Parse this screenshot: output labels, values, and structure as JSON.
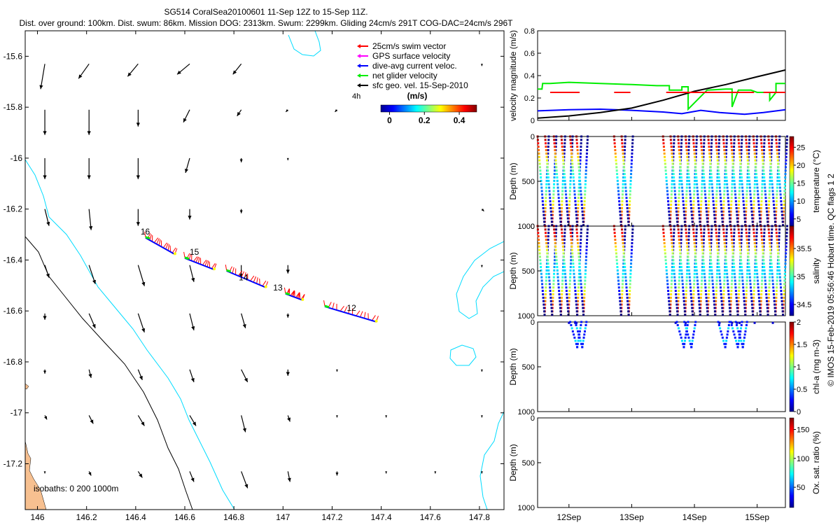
{
  "header": {
    "line1": "SG514 CoralSea20100601 11-Sep 12Z to 15-Sep 11Z.",
    "line2": "Dist. over ground: 100km. Dist. swum: 86km. Mission DOG: 2313km. Swum: 2299km. Gliding 24cm/s 291T COG-DAC=24cm/s 296T"
  },
  "footer_vertical": "© IMOS 15-Feb-2019 05:56:46 Hobart time. QC flags 1  2",
  "colors": {
    "swim": "#ff0000",
    "gps": "#ff00ff",
    "dac": "#0000ff",
    "net": "#00ee00",
    "geo": "#000000",
    "coast": "#00dcff",
    "land": "#f7c090",
    "isobath": "#000000"
  },
  "chart_data": [
    {
      "type": "scatter",
      "name": "map",
      "xlim": [
        145.95,
        147.9
      ],
      "ylim": [
        -17.38,
        -15.5
      ],
      "xticks": [
        "146",
        "146.2",
        "146.4",
        "146.6",
        "146.8",
        "147",
        "147.2",
        "147.4",
        "147.6",
        "147.8"
      ],
      "yticks": [
        "-15.6",
        "-15.8",
        "-16",
        "-16.2",
        "-16.4",
        "-16.6",
        "-16.8",
        "-17",
        "-17.2"
      ],
      "legend": [
        {
          "label": "25cm/s swim vector",
          "color": "#ff0000"
        },
        {
          "label": "GPS surface velocity",
          "color": "#ff00ff"
        },
        {
          "label": "dive-avg current veloc.",
          "color": "#0000ff"
        },
        {
          "label": "net glider velocity",
          "color": "#00ee00"
        },
        {
          "label": "sfc geo. vel. 15-Sep-2010",
          "color": "#000000"
        }
      ],
      "legend_note": "4h",
      "colorbar": {
        "label": "(m/s)",
        "ticks": [
          "0",
          "0.2",
          "0.4"
        ],
        "range": [
          -0.05,
          0.5
        ]
      },
      "isobath_text": "isobaths: 0   200  1000m",
      "day_labels": [
        {
          "text": "16",
          "lon": 146.42,
          "lat": -16.3
        },
        {
          "text": "15",
          "lon": 146.62,
          "lat": -16.38
        },
        {
          "text": "14",
          "lon": 146.82,
          "lat": -16.48
        },
        {
          "text": "13",
          "lon": 146.96,
          "lat": -16.52
        },
        {
          "text": "12",
          "lon": 147.26,
          "lat": -16.6
        }
      ],
      "track_segments": [
        {
          "lon": [
            146.44,
            146.56
          ],
          "lat": [
            -16.31,
            -16.375
          ]
        },
        {
          "lon": [
            146.6,
            146.72
          ],
          "lat": [
            -16.39,
            -16.435
          ]
        },
        {
          "lon": [
            146.77,
            146.93
          ],
          "lat": [
            -16.44,
            -16.505
          ]
        },
        {
          "lon": [
            147.01,
            147.08
          ],
          "lat": [
            -16.53,
            -16.555
          ]
        },
        {
          "lon": [
            147.17,
            147.38
          ],
          "lat": [
            -16.58,
            -16.64
          ]
        }
      ],
      "geo_grid": {
        "lons": [
          146.03,
          146.21,
          146.41,
          146.62,
          146.83,
          147.02,
          147.22,
          147.42,
          147.62,
          147.81
        ],
        "lats": [
          -15.63,
          -15.81,
          -16.0,
          -16.2,
          -16.42,
          -16.61,
          -16.83,
          -17.01,
          -17.23
        ],
        "u": [
          [
            -0.02,
            -0.05,
            -0.05,
            -0.06,
            -0.04,
            0,
            0,
            0,
            0,
            0
          ],
          [
            0,
            0,
            0,
            -0.03,
            -0.02,
            -0.01,
            -0.01,
            0,
            0,
            0
          ],
          [
            0,
            0,
            0,
            -0.02,
            0,
            0,
            0,
            0,
            0,
            0
          ],
          [
            0.02,
            0.01,
            0,
            0,
            0,
            0,
            0,
            0,
            0,
            0.01
          ],
          [
            0.02,
            0.03,
            0.03,
            0.02,
            0,
            0,
            0,
            0,
            0,
            0
          ],
          [
            0,
            0.03,
            0.03,
            0.02,
            0.02,
            0,
            0,
            0,
            0,
            0
          ],
          [
            0,
            0.01,
            0.02,
            0.02,
            0.03,
            0,
            0,
            0,
            0,
            0
          ],
          [
            0.01,
            0.02,
            0.03,
            0.03,
            0.02,
            0.01,
            0,
            0,
            0,
            0
          ],
          [
            0,
            0.01,
            0.02,
            0.02,
            0.03,
            0.01,
            0,
            0,
            0,
            0
          ]
        ],
        "v": [
          [
            -0.12,
            -0.07,
            -0.06,
            -0.05,
            -0.05,
            0,
            0,
            0,
            0,
            -0.01
          ],
          [
            -0.12,
            -0.12,
            -0.08,
            -0.06,
            -0.03,
            -0.01,
            -0.01,
            0,
            0,
            0
          ],
          [
            -0.1,
            -0.1,
            -0.1,
            -0.07,
            -0.02,
            -0.01,
            0,
            0,
            0,
            0
          ],
          [
            -0.08,
            -0.1,
            -0.08,
            -0.05,
            -0.02,
            0,
            0,
            0,
            0,
            -0.01
          ],
          [
            -0.06,
            -0.09,
            -0.1,
            -0.08,
            -0.06,
            -0.04,
            0,
            0,
            0,
            -0.01
          ],
          [
            -0.03,
            -0.07,
            -0.09,
            -0.08,
            -0.07,
            -0.02,
            0,
            0,
            0,
            0
          ],
          [
            -0.02,
            -0.04,
            -0.05,
            -0.06,
            -0.06,
            -0.03,
            -0.01,
            0,
            0,
            -0.01
          ],
          [
            -0.02,
            -0.04,
            -0.05,
            -0.05,
            -0.08,
            -0.03,
            -0.01,
            -0.01,
            0,
            -0.01
          ],
          [
            -0.01,
            -0.02,
            -0.03,
            -0.05,
            -0.08,
            -0.05,
            -0.02,
            -0.01,
            -0.01,
            -0.01
          ]
        ]
      }
    },
    {
      "type": "line",
      "name": "velocity",
      "ylabel": "velocity magnitude (m/s)",
      "ylim": [
        0,
        0.8
      ],
      "yticks": [
        "0",
        "0.2",
        "0.4",
        "0.6",
        "0.8"
      ],
      "x_range_days": [
        11.5,
        15.45
      ],
      "series": [
        {
          "color": "#00ee00",
          "x": [
            11.5,
            11.57,
            11.58,
            11.7,
            12.0,
            12.5,
            13.0,
            13.4,
            13.6,
            13.6,
            13.8,
            13.8,
            13.9,
            13.9,
            14.2,
            14.5,
            14.6,
            14.6,
            14.7,
            14.9,
            15.0,
            15.2,
            15.2,
            15.3,
            15.3,
            15.45
          ],
          "y": [
            0.28,
            0.28,
            0.33,
            0.33,
            0.34,
            0.33,
            0.32,
            0.31,
            0.31,
            0.27,
            0.27,
            0.3,
            0.3,
            0.1,
            0.27,
            0.28,
            0.28,
            0.12,
            0.27,
            0.27,
            0.25,
            0.25,
            0.18,
            0.25,
            0.33,
            0.33
          ]
        },
        {
          "color": "#0000ff",
          "x": [
            11.5,
            12.0,
            12.5,
            13.0,
            13.5,
            13.8,
            14.1,
            14.4,
            14.8,
            15.1,
            15.45
          ],
          "y": [
            0.085,
            0.095,
            0.1,
            0.09,
            0.075,
            0.06,
            0.09,
            0.07,
            0.055,
            0.07,
            0.095
          ]
        },
        {
          "color": "#000000",
          "x": [
            11.5,
            12.0,
            12.5,
            13.0,
            13.5,
            14.0,
            14.5,
            15.0,
            15.45
          ],
          "y": [
            0.02,
            0.04,
            0.07,
            0.11,
            0.18,
            0.26,
            0.32,
            0.39,
            0.45
          ]
        },
        {
          "color": "#ff0000",
          "dashed": true,
          "x": [
            11.7,
            12.17,
            12.72,
            12.98,
            13.55,
            14.95,
            15.1,
            15.45
          ],
          "y": [
            0.25,
            0.25,
            0.25,
            0.25,
            0.25,
            0.25,
            0.25,
            0.25
          ]
        }
      ]
    },
    {
      "type": "scatter",
      "name": "temperature",
      "ylabel": "Depth (m)",
      "cbar_label": "temperature (°C)",
      "yticks": [
        "0",
        "500",
        "1000"
      ],
      "cbar_ticks": [
        "25",
        "20",
        "15",
        "10",
        "5"
      ],
      "cbar_range": [
        3,
        28
      ],
      "max_depth": 1000,
      "profile_starts": [
        11.5,
        11.62,
        11.76,
        11.88,
        12.02,
        12.12,
        12.72,
        12.84,
        13.5,
        13.62,
        13.74,
        13.86,
        13.98,
        14.1,
        14.22,
        14.34,
        14.46,
        14.58,
        14.7,
        14.82,
        14.94,
        15.06,
        15.18,
        15.3
      ]
    },
    {
      "type": "scatter",
      "name": "salinity",
      "ylabel": "Depth (m)",
      "cbar_label": "salinity",
      "yticks": [
        "0",
        "500",
        "1000"
      ],
      "cbar_ticks": [
        "35.5",
        "35",
        "34.5"
      ],
      "cbar_range": [
        34.3,
        35.9
      ],
      "max_depth": 1000
    },
    {
      "type": "scatter",
      "name": "chla",
      "ylabel": "Depth (m)",
      "cbar_label": "chl-a (mg m-3)",
      "yticks": [
        "0",
        "500",
        "1000"
      ],
      "cbar_ticks": [
        "2",
        "1.5",
        "1",
        "0.5",
        "0"
      ],
      "cbar_range": [
        0,
        2
      ],
      "max_depth": 1000
    },
    {
      "type": "scatter",
      "name": "oxygen",
      "ylabel": "Depth (m)",
      "cbar_label": "Ox. sat. ratio (%)",
      "yticks": [
        "0",
        "500",
        "1000"
      ],
      "cbar_ticks": [
        "150",
        "100",
        "50"
      ],
      "cbar_range": [
        15,
        170
      ],
      "max_depth": 1000,
      "xticks": [
        "12Sep",
        "13Sep",
        "14Sep",
        "15Sep"
      ],
      "xtick_days": [
        12,
        13,
        14,
        15
      ]
    }
  ]
}
